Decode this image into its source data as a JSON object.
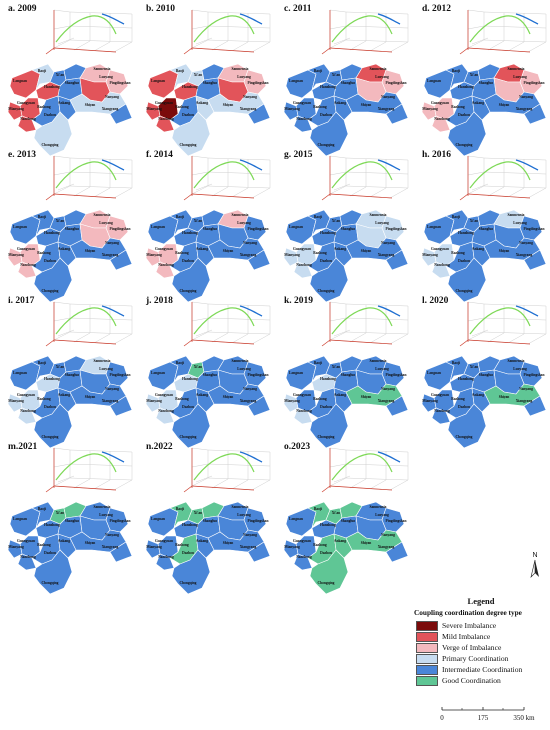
{
  "panels": [
    {
      "label": "a. 2009",
      "regions": [
        "Mild Imbalance",
        "Primary Coordination",
        "Intermediate Coordination",
        "Intermediate Coordination",
        "Mild Imbalance",
        "Mild Imbalance",
        "Intermediate Coordination",
        "Verge of Imbalance",
        "Verge of Imbalance",
        "Mild Imbalance",
        "Mild Imbalance",
        "Mild Imbalance",
        "Intermediate Coordination",
        "Intermediate Coordination",
        "Primary Coordination",
        "Intermediate Coordination",
        "Primary Coordination"
      ]
    },
    {
      "label": "b. 2010",
      "regions": [
        "Mild Imbalance",
        "Primary Coordination",
        "Primary Coordination",
        "Intermediate Coordination",
        "Severe Imbalance",
        "Mild Imbalance",
        "Intermediate Coordination",
        "Verge of Imbalance",
        "Verge of Imbalance",
        "Mild Imbalance",
        "Mild Imbalance",
        "Mild Imbalance",
        "Intermediate Coordination",
        "Primary Coordination",
        "Primary Coordination",
        "Intermediate Coordination",
        "Primary Coordination"
      ]
    },
    {
      "label": "c. 2011",
      "regions": [
        "Intermediate Coordination",
        "Intermediate Coordination",
        "Intermediate Coordination",
        "Intermediate Coordination",
        "Intermediate Coordination",
        "Intermediate Coordination",
        "Intermediate Coordination",
        "Mild Imbalance",
        "Verge of Imbalance",
        "Verge of Imbalance",
        "Intermediate Coordination",
        "Intermediate Coordination",
        "Intermediate Coordination",
        "Intermediate Coordination",
        "Intermediate Coordination",
        "Intermediate Coordination",
        "Intermediate Coordination"
      ]
    },
    {
      "label": "d. 2012",
      "regions": [
        "Intermediate Coordination",
        "Intermediate Coordination",
        "Intermediate Coordination",
        "Intermediate Coordination",
        "Verge of Imbalance",
        "Intermediate Coordination",
        "Intermediate Coordination",
        "Mild Imbalance",
        "Verge of Imbalance",
        "Verge of Imbalance",
        "Verge of Imbalance",
        "Verge of Imbalance",
        "Intermediate Coordination",
        "Intermediate Coordination",
        "Intermediate Coordination",
        "Intermediate Coordination",
        "Intermediate Coordination"
      ]
    },
    {
      "label": "e. 2013",
      "regions": [
        "Intermediate Coordination",
        "Intermediate Coordination",
        "Intermediate Coordination",
        "Intermediate Coordination",
        "Verge of Imbalance",
        "Intermediate Coordination",
        "Intermediate Coordination",
        "Verge of Imbalance",
        "Verge of Imbalance",
        "Verge of Imbalance",
        "Verge of Imbalance",
        "Verge of Imbalance",
        "Intermediate Coordination",
        "Intermediate Coordination",
        "Intermediate Coordination",
        "Intermediate Coordination",
        "Intermediate Coordination"
      ]
    },
    {
      "label": "f. 2014",
      "regions": [
        "Intermediate Coordination",
        "Intermediate Coordination",
        "Intermediate Coordination",
        "Intermediate Coordination",
        "Verge of Imbalance",
        "Intermediate Coordination",
        "Intermediate Coordination",
        "Verge of Imbalance",
        "Intermediate Coordination",
        "Intermediate Coordination",
        "Verge of Imbalance",
        "Verge of Imbalance",
        "Intermediate Coordination",
        "Intermediate Coordination",
        "Intermediate Coordination",
        "Intermediate Coordination",
        "Intermediate Coordination"
      ]
    },
    {
      "label": "g. 2015",
      "regions": [
        "Intermediate Coordination",
        "Intermediate Coordination",
        "Intermediate Coordination",
        "Intermediate Coordination",
        "Primary Coordination",
        "Intermediate Coordination",
        "Intermediate Coordination",
        "Primary Coordination",
        "Primary Coordination",
        "Primary Coordination",
        "Primary Coordination",
        "Primary Coordination",
        "Intermediate Coordination",
        "Intermediate Coordination",
        "Intermediate Coordination",
        "Intermediate Coordination",
        "Intermediate Coordination"
      ]
    },
    {
      "label": "h. 2016",
      "regions": [
        "Intermediate Coordination",
        "Intermediate Coordination",
        "Intermediate Coordination",
        "Intermediate Coordination",
        "Primary Coordination",
        "Intermediate Coordination",
        "Intermediate Coordination",
        "Primary Coordination",
        "Intermediate Coordination",
        "Intermediate Coordination",
        "Primary Coordination",
        "Primary Coordination",
        "Intermediate Coordination",
        "Intermediate Coordination",
        "Intermediate Coordination",
        "Intermediate Coordination",
        "Intermediate Coordination"
      ]
    },
    {
      "label": "i. 2017",
      "regions": [
        "Intermediate Coordination",
        "Intermediate Coordination",
        "Intermediate Coordination",
        "Intermediate Coordination",
        "Primary Coordination",
        "Primary Coordination",
        "Intermediate Coordination",
        "Primary Coordination",
        "Intermediate Coordination",
        "Intermediate Coordination",
        "Primary Coordination",
        "Primary Coordination",
        "Intermediate Coordination",
        "Intermediate Coordination",
        "Intermediate Coordination",
        "Intermediate Coordination",
        "Intermediate Coordination"
      ]
    },
    {
      "label": "j. 2018",
      "regions": [
        "Intermediate Coordination",
        "Intermediate Coordination",
        "Good Coordination",
        "Intermediate Coordination",
        "Primary Coordination",
        "Primary Coordination",
        "Intermediate Coordination",
        "Intermediate Coordination",
        "Intermediate Coordination",
        "Intermediate Coordination",
        "Primary Coordination",
        "Primary Coordination",
        "Intermediate Coordination",
        "Intermediate Coordination",
        "Intermediate Coordination",
        "Intermediate Coordination",
        "Intermediate Coordination"
      ]
    },
    {
      "label": "k. 2019",
      "regions": [
        "Intermediate Coordination",
        "Intermediate Coordination",
        "Intermediate Coordination",
        "Intermediate Coordination",
        "Intermediate Coordination",
        "Primary Coordination",
        "Intermediate Coordination",
        "Intermediate Coordination",
        "Intermediate Coordination",
        "Intermediate Coordination",
        "Primary Coordination",
        "Primary Coordination",
        "Intermediate Coordination",
        "Intermediate Coordination",
        "Good Coordination",
        "Intermediate Coordination",
        "Intermediate Coordination"
      ]
    },
    {
      "label": "l. 2020",
      "regions": [
        "Intermediate Coordination",
        "Intermediate Coordination",
        "Intermediate Coordination",
        "Intermediate Coordination",
        "Intermediate Coordination",
        "Intermediate Coordination",
        "Intermediate Coordination",
        "Intermediate Coordination",
        "Intermediate Coordination",
        "Intermediate Coordination",
        "Intermediate Coordination",
        "Intermediate Coordination",
        "Intermediate Coordination",
        "Intermediate Coordination",
        "Good Coordination",
        "Intermediate Coordination",
        "Intermediate Coordination"
      ]
    },
    {
      "label": "m.2021",
      "regions": [
        "Intermediate Coordination",
        "Intermediate Coordination",
        "Good Coordination",
        "Good Coordination",
        "Intermediate Coordination",
        "Intermediate Coordination",
        "Intermediate Coordination",
        "Intermediate Coordination",
        "Intermediate Coordination",
        "Intermediate Coordination",
        "Intermediate Coordination",
        "Intermediate Coordination",
        "Intermediate Coordination",
        "Intermediate Coordination",
        "Intermediate Coordination",
        "Intermediate Coordination",
        "Intermediate Coordination"
      ]
    },
    {
      "label": "n.2022",
      "regions": [
        "Intermediate Coordination",
        "Good Coordination",
        "Good Coordination",
        "Good Coordination",
        "Intermediate Coordination",
        "Intermediate Coordination",
        "Intermediate Coordination",
        "Intermediate Coordination",
        "Intermediate Coordination",
        "Intermediate Coordination",
        "Intermediate Coordination",
        "Intermediate Coordination",
        "Good Coordination",
        "Intermediate Coordination",
        "Intermediate Coordination",
        "Intermediate Coordination",
        "Intermediate Coordination"
      ]
    },
    {
      "label": "o.2023",
      "regions": [
        "Intermediate Coordination",
        "Good Coordination",
        "Good Coordination",
        "Good Coordination",
        "Intermediate Coordination",
        "Intermediate Coordination",
        "Intermediate Coordination",
        "Intermediate Coordination",
        "Intermediate Coordination",
        "Intermediate Coordination",
        "Intermediate Coordination",
        "Intermediate Coordination",
        "Good Coordination",
        "Good Coordination",
        "Good Coordination",
        "Intermediate Coordination",
        "Good Coordination"
      ]
    }
  ],
  "city_labels": [
    "Longnan",
    "Baoji",
    "Xi'an",
    "Hanzhong",
    "Shangluo",
    "Sanmenxia",
    "Luoyang",
    "Pingdingshan",
    "Nanyang",
    "Guangyuan",
    "Bazhong",
    "Ankang",
    "Shiyan",
    "Xiangyang",
    "Nanchong",
    "Dazhou",
    "Mianyang",
    "Chongqing"
  ],
  "legend": {
    "title": "Legend",
    "subtitle": "Coupling coordination degree type",
    "items": [
      {
        "label": "Severe Imbalance",
        "color": "#7b0b0b"
      },
      {
        "label": "Mild Imbalance",
        "color": "#e2545a"
      },
      {
        "label": "Verge of Imbalance",
        "color": "#f3b9be"
      },
      {
        "label": "Primary Coordination",
        "color": "#c7dcf0"
      },
      {
        "label": "Intermediate Coordination",
        "color": "#4a86d8"
      },
      {
        "label": "Good Coordination",
        "color": "#5fc695"
      }
    ]
  },
  "north_label": "N",
  "scale": {
    "ticks": [
      "0",
      "175",
      "350 km"
    ]
  },
  "colors": {
    "line_green": "#7ed957",
    "line_blue": "#1f6fd1",
    "axis_red": "#cc3b2b",
    "grid": "#cfcfcf",
    "border": "#ffffff"
  }
}
